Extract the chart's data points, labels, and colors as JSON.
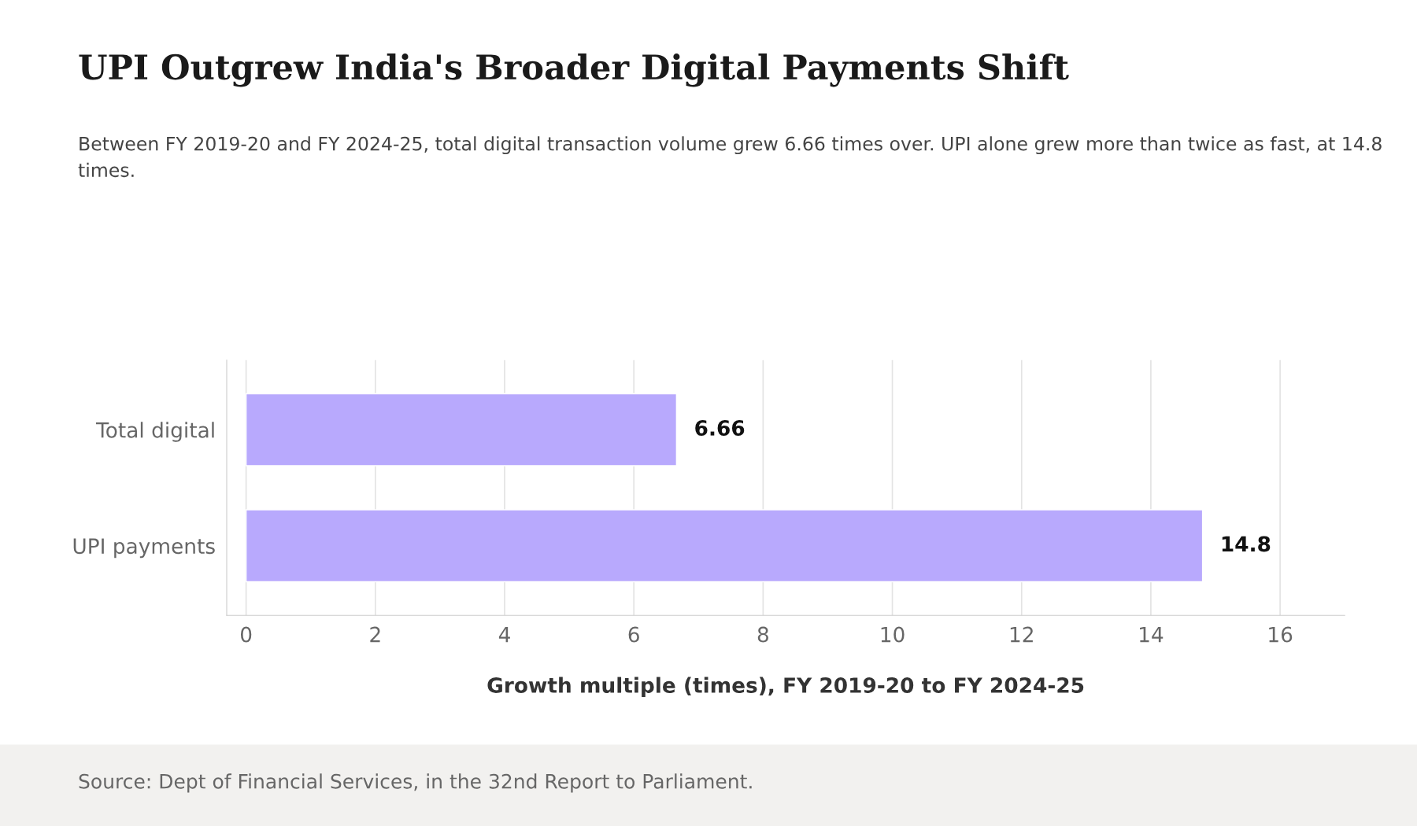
{
  "chart_data": {
    "type": "bar",
    "orientation": "horizontal",
    "title": "UPI Outgrew India's Broader Digital Payments Shift",
    "subtitle": "Between FY 2019-20 and FY 2024-25, total digital transaction volume grew 6.66 times over. UPI alone grew more than twice as fast, at 14.8 times.",
    "xlabel": "Growth multiple (times), FY 2019-20 to FY 2024-25",
    "categories": [
      "Total digital",
      "UPI payments"
    ],
    "values": [
      6.66,
      14.8
    ],
    "color": "#b8a9fd",
    "xlim": [
      -0.3,
      17
    ],
    "xticks": [
      0,
      2,
      4,
      6,
      8,
      10,
      12,
      14,
      16
    ],
    "grid": "x",
    "data_labels": true,
    "annotations": [
      "Source: Dept of Financial Services, in the 32nd Report to Parliament."
    ]
  }
}
